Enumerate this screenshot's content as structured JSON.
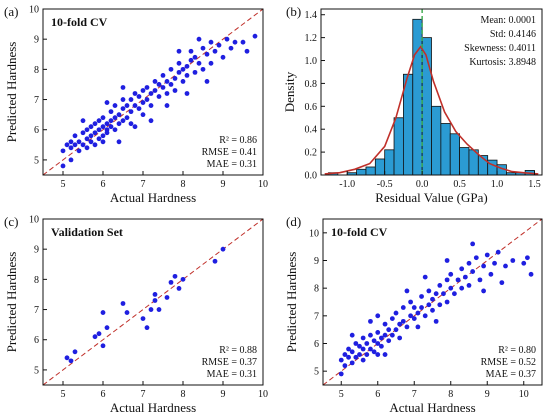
{
  "panels": [
    {
      "label": "(a)",
      "title": "10-fold CV",
      "stats": [
        "R² = 0.86",
        "RMSE = 0.41",
        "MAE = 0.31"
      ]
    },
    {
      "label": "(b)",
      "title": "",
      "stats": [
        "Mean: 0.0001",
        "Std: 0.4146",
        "Skewness: 0.4011",
        "Kurtosis: 3.8948"
      ]
    },
    {
      "label": "(c)",
      "title": "Validation Set",
      "stats": [
        "R² = 0.88",
        "RMSE = 0.37",
        "MAE = 0.31"
      ]
    },
    {
      "label": "(d)",
      "title": "10-fold CV",
      "stats": [
        "R² = 0.80",
        "RMSE = 0.52",
        "MAE = 0.37"
      ]
    }
  ],
  "chart_data": [
    {
      "type": "scatter",
      "title": "10-fold CV",
      "xlabel": "Actual Hardness",
      "ylabel": "Predicted Hardness",
      "xlim": [
        4.5,
        10
      ],
      "ylim": [
        4.5,
        10
      ],
      "xticks": [
        5,
        6,
        7,
        8,
        9,
        10
      ],
      "yticks": [
        5,
        6,
        7,
        8,
        9,
        10
      ],
      "point_color": "#1f1fe0",
      "diagonal": true,
      "points": [
        [
          5.0,
          5.3
        ],
        [
          5.1,
          5.5
        ],
        [
          5.2,
          5.4
        ],
        [
          5.2,
          5.6
        ],
        [
          5.3,
          5.5
        ],
        [
          5.3,
          5.8
        ],
        [
          5.4,
          5.3
        ],
        [
          5.4,
          5.6
        ],
        [
          5.5,
          5.5
        ],
        [
          5.5,
          5.9
        ],
        [
          5.6,
          5.4
        ],
        [
          5.6,
          5.7
        ],
        [
          5.6,
          6.0
        ],
        [
          5.7,
          5.6
        ],
        [
          5.7,
          5.8
        ],
        [
          5.7,
          6.1
        ],
        [
          5.8,
          5.5
        ],
        [
          5.8,
          5.9
        ],
        [
          5.8,
          6.2
        ],
        [
          5.9,
          5.7
        ],
        [
          5.9,
          6.0
        ],
        [
          5.9,
          6.3
        ],
        [
          6.0,
          5.8
        ],
        [
          6.0,
          6.1
        ],
        [
          6.0,
          6.4
        ],
        [
          6.0,
          5.6
        ],
        [
          6.1,
          6.0
        ],
        [
          6.1,
          6.2
        ],
        [
          6.1,
          5.9
        ],
        [
          6.2,
          6.1
        ],
        [
          6.2,
          6.3
        ],
        [
          6.2,
          6.6
        ],
        [
          6.3,
          6.0
        ],
        [
          6.3,
          6.4
        ],
        [
          6.3,
          6.8
        ],
        [
          6.4,
          6.2
        ],
        [
          6.4,
          6.5
        ],
        [
          6.5,
          6.3
        ],
        [
          6.5,
          6.7
        ],
        [
          6.5,
          7.0
        ],
        [
          6.6,
          6.4
        ],
        [
          6.6,
          6.8
        ],
        [
          6.7,
          6.6
        ],
        [
          6.7,
          7.0
        ],
        [
          6.7,
          6.2
        ],
        [
          6.8,
          6.8
        ],
        [
          6.8,
          7.2
        ],
        [
          6.9,
          6.7
        ],
        [
          6.9,
          7.1
        ],
        [
          7.0,
          6.9
        ],
        [
          7.0,
          7.3
        ],
        [
          7.0,
          6.5
        ],
        [
          7.1,
          7.0
        ],
        [
          7.1,
          7.4
        ],
        [
          7.2,
          7.2
        ],
        [
          7.2,
          6.8
        ],
        [
          7.3,
          7.3
        ],
        [
          7.3,
          7.6
        ],
        [
          7.4,
          7.1
        ],
        [
          7.4,
          7.5
        ],
        [
          7.5,
          7.4
        ],
        [
          7.5,
          7.8
        ],
        [
          7.6,
          7.2
        ],
        [
          7.6,
          7.6
        ],
        [
          7.7,
          7.5
        ],
        [
          7.7,
          8.0
        ],
        [
          7.8,
          7.7
        ],
        [
          7.8,
          7.3
        ],
        [
          7.9,
          7.9
        ],
        [
          7.9,
          8.2
        ],
        [
          8.0,
          7.6
        ],
        [
          8.0,
          8.0
        ],
        [
          8.1,
          8.1
        ],
        [
          8.1,
          7.8
        ],
        [
          8.2,
          8.3
        ],
        [
          8.2,
          8.6
        ],
        [
          8.3,
          7.9
        ],
        [
          8.3,
          8.4
        ],
        [
          8.4,
          8.2
        ],
        [
          8.5,
          8.7
        ],
        [
          8.5,
          8.0
        ],
        [
          8.6,
          8.5
        ],
        [
          8.7,
          8.9
        ],
        [
          8.7,
          8.2
        ],
        [
          8.8,
          8.6
        ],
        [
          8.9,
          8.8
        ],
        [
          9.0,
          8.4
        ],
        [
          9.1,
          9.0
        ],
        [
          9.2,
          8.7
        ],
        [
          9.3,
          8.9
        ],
        [
          9.5,
          8.9
        ],
        [
          9.6,
          8.6
        ],
        [
          9.8,
          9.1
        ],
        [
          6.4,
          5.6
        ],
        [
          6.8,
          6.1
        ],
        [
          7.2,
          6.3
        ],
        [
          7.6,
          6.8
        ],
        [
          8.1,
          7.2
        ],
        [
          6.1,
          6.9
        ],
        [
          6.5,
          7.4
        ],
        [
          5.5,
          6.3
        ],
        [
          8.6,
          7.6
        ],
        [
          5.2,
          5.0
        ],
        [
          5.0,
          4.8
        ],
        [
          7.9,
          8.6
        ],
        [
          8.4,
          9.0
        ]
      ]
    },
    {
      "type": "bar",
      "xlabel": "Residual Value (GPa)",
      "ylabel": "Density",
      "xlim": [
        -1.35,
        1.6
      ],
      "ylim": [
        0,
        1.45
      ],
      "xticks": [
        -1.0,
        -0.5,
        0.0,
        0.5,
        1.0,
        1.5
      ],
      "yticks": [
        0.0,
        0.2,
        0.4,
        0.6,
        0.8,
        1.0,
        1.2,
        1.4
      ],
      "bar_color": "#2b9bd3",
      "bin_edges": [
        -1.25,
        -1.125,
        -1.0,
        -0.875,
        -0.75,
        -0.625,
        -0.5,
        -0.375,
        -0.25,
        -0.125,
        0.0,
        0.125,
        0.25,
        0.375,
        0.5,
        0.625,
        0.75,
        0.875,
        1.0,
        1.125,
        1.25,
        1.375,
        1.5
      ],
      "values": [
        0.02,
        0.0,
        0.02,
        0.05,
        0.07,
        0.14,
        0.22,
        0.5,
        0.88,
        1.36,
        1.2,
        0.6,
        0.45,
        0.36,
        0.24,
        0.22,
        0.17,
        0.13,
        0.09,
        0.02,
        0.02,
        0.04
      ],
      "kde": [
        [
          -1.3,
          0.01
        ],
        [
          -1.1,
          0.02
        ],
        [
          -0.9,
          0.05
        ],
        [
          -0.7,
          0.1
        ],
        [
          -0.5,
          0.25
        ],
        [
          -0.35,
          0.5
        ],
        [
          -0.2,
          0.85
        ],
        [
          -0.1,
          1.05
        ],
        [
          -0.02,
          1.12
        ],
        [
          0.05,
          1.05
        ],
        [
          0.15,
          0.82
        ],
        [
          0.3,
          0.55
        ],
        [
          0.45,
          0.38
        ],
        [
          0.6,
          0.27
        ],
        [
          0.75,
          0.18
        ],
        [
          0.9,
          0.1
        ],
        [
          1.05,
          0.06
        ],
        [
          1.2,
          0.03
        ],
        [
          1.35,
          0.02
        ],
        [
          1.55,
          0.01
        ]
      ],
      "kde_color": "#c0302a",
      "mean_line": 0.0,
      "mean_line_color": "#3aa84a"
    },
    {
      "type": "scatter",
      "title": "Validation Set",
      "xlabel": "Actual Hardness",
      "ylabel": "Predicted Hardness",
      "xlim": [
        4.5,
        10
      ],
      "ylim": [
        4.5,
        10
      ],
      "xticks": [
        5,
        6,
        7,
        8,
        9,
        10
      ],
      "yticks": [
        5,
        6,
        7,
        8,
        9,
        10
      ],
      "point_color": "#1f1fe0",
      "diagonal": true,
      "points": [
        [
          5.1,
          5.4
        ],
        [
          5.2,
          5.3
        ],
        [
          5.3,
          5.6
        ],
        [
          5.8,
          6.1
        ],
        [
          5.9,
          6.2
        ],
        [
          6.0,
          6.9
        ],
        [
          6.0,
          5.8
        ],
        [
          6.1,
          6.4
        ],
        [
          6.5,
          7.2
        ],
        [
          6.6,
          6.9
        ],
        [
          7.0,
          6.7
        ],
        [
          7.1,
          6.4
        ],
        [
          7.2,
          7.0
        ],
        [
          7.3,
          7.3
        ],
        [
          7.3,
          7.5
        ],
        [
          7.4,
          7.0
        ],
        [
          7.6,
          7.4
        ],
        [
          7.7,
          7.9
        ],
        [
          7.8,
          8.1
        ],
        [
          7.9,
          7.7
        ],
        [
          8.0,
          8.0
        ],
        [
          8.8,
          8.6
        ],
        [
          9.0,
          9.0
        ]
      ]
    },
    {
      "type": "scatter",
      "title": "10-fold CV",
      "xlabel": "Actual Hardness",
      "ylabel": "Predicted Hardness",
      "xlim": [
        4.5,
        10.5
      ],
      "ylim": [
        4.5,
        10.5
      ],
      "xticks": [
        5,
        6,
        7,
        8,
        9,
        10
      ],
      "yticks": [
        5,
        6,
        7,
        8,
        9,
        10
      ],
      "point_color": "#1f1fe0",
      "diagonal": true,
      "points": [
        [
          5.0,
          5.4
        ],
        [
          5.1,
          5.6
        ],
        [
          5.1,
          5.2
        ],
        [
          5.2,
          5.5
        ],
        [
          5.2,
          5.8
        ],
        [
          5.3,
          5.3
        ],
        [
          5.3,
          5.7
        ],
        [
          5.4,
          5.5
        ],
        [
          5.4,
          6.0
        ],
        [
          5.5,
          5.6
        ],
        [
          5.5,
          5.9
        ],
        [
          5.6,
          5.4
        ],
        [
          5.6,
          5.8
        ],
        [
          5.6,
          6.2
        ],
        [
          5.7,
          5.6
        ],
        [
          5.7,
          6.0
        ],
        [
          5.8,
          5.8
        ],
        [
          5.8,
          6.3
        ],
        [
          5.9,
          5.7
        ],
        [
          5.9,
          6.1
        ],
        [
          6.0,
          6.0
        ],
        [
          6.0,
          6.4
        ],
        [
          6.0,
          5.6
        ],
        [
          6.1,
          6.2
        ],
        [
          6.1,
          5.9
        ],
        [
          6.2,
          6.3
        ],
        [
          6.2,
          6.7
        ],
        [
          6.3,
          6.1
        ],
        [
          6.3,
          6.5
        ],
        [
          6.4,
          6.3
        ],
        [
          6.4,
          6.9
        ],
        [
          6.5,
          6.5
        ],
        [
          6.5,
          7.1
        ],
        [
          6.6,
          6.7
        ],
        [
          6.6,
          6.2
        ],
        [
          6.7,
          6.8
        ],
        [
          6.7,
          7.3
        ],
        [
          6.8,
          6.6
        ],
        [
          6.9,
          7.0
        ],
        [
          6.9,
          7.5
        ],
        [
          7.0,
          6.9
        ],
        [
          7.0,
          7.3
        ],
        [
          7.1,
          7.1
        ],
        [
          7.1,
          6.6
        ],
        [
          7.2,
          7.3
        ],
        [
          7.2,
          7.7
        ],
        [
          7.3,
          7.0
        ],
        [
          7.4,
          7.4
        ],
        [
          7.4,
          7.9
        ],
        [
          7.5,
          7.2
        ],
        [
          7.5,
          7.6
        ],
        [
          7.6,
          7.8
        ],
        [
          7.7,
          7.4
        ],
        [
          7.7,
          8.1
        ],
        [
          7.8,
          7.8
        ],
        [
          7.9,
          8.3
        ],
        [
          7.9,
          7.5
        ],
        [
          8.0,
          8.0
        ],
        [
          8.0,
          8.5
        ],
        [
          8.1,
          7.8
        ],
        [
          8.2,
          8.3
        ],
        [
          8.3,
          8.7
        ],
        [
          8.3,
          8.0
        ],
        [
          8.4,
          8.4
        ],
        [
          8.5,
          8.9
        ],
        [
          8.5,
          8.1
        ],
        [
          8.6,
          8.6
        ],
        [
          8.7,
          9.1
        ],
        [
          8.8,
          8.3
        ],
        [
          8.9,
          8.8
        ],
        [
          9.0,
          9.2
        ],
        [
          9.1,
          8.5
        ],
        [
          9.2,
          8.9
        ],
        [
          9.3,
          9.3
        ],
        [
          9.5,
          8.8
        ],
        [
          9.7,
          9.0
        ],
        [
          10.0,
          8.9
        ],
        [
          10.1,
          9.1
        ],
        [
          10.2,
          8.5
        ],
        [
          5.0,
          4.9
        ],
        [
          5.3,
          6.3
        ],
        [
          5.8,
          6.8
        ],
        [
          6.2,
          5.6
        ],
        [
          7.3,
          8.4
        ],
        [
          7.6,
          6.8
        ],
        [
          8.6,
          9.6
        ],
        [
          8.9,
          7.9
        ],
        [
          9.4,
          8.2
        ],
        [
          6.8,
          7.9
        ],
        [
          7.9,
          9.0
        ],
        [
          6.0,
          7.0
        ]
      ]
    }
  ]
}
